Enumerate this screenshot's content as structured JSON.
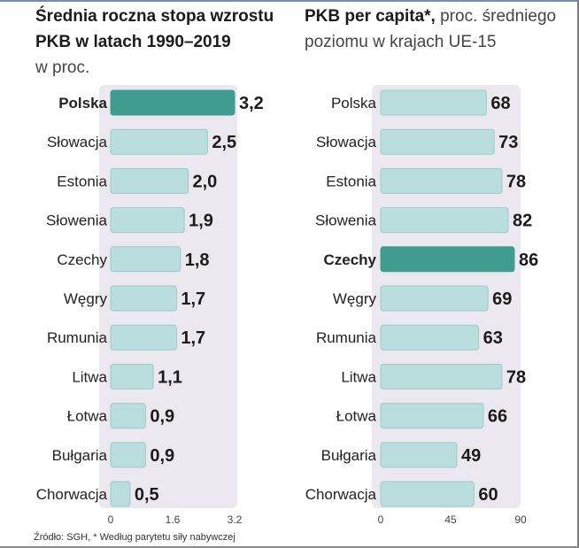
{
  "chart_data": [
    {
      "type": "bar",
      "orientation": "horizontal",
      "title": "Średnia roczna stopa wzrostu PKB  w latach 1990–2019",
      "subtitle": "w proc.",
      "categories": [
        "Polska",
        "Słowacja",
        "Estonia",
        "Słowenia",
        "Czechy",
        "Węgry",
        "Rumunia",
        "Litwa",
        "Łotwa",
        "Bułgaria",
        "Chorwacja"
      ],
      "values": [
        3.2,
        2.5,
        2.0,
        1.9,
        1.8,
        1.7,
        1.7,
        1.1,
        0.9,
        0.9,
        0.5
      ],
      "value_labels": [
        "3,2",
        "2,5",
        "2,0",
        "1,9",
        "1,8",
        "1,7",
        "1,7",
        "1,1",
        "0,9",
        "0,9",
        "0,5"
      ],
      "highlight": "Polska",
      "xlim": [
        0,
        3.2
      ],
      "ticks": [
        0,
        1.6,
        3.2
      ],
      "tick_labels": [
        "0",
        "1.6",
        "3.2"
      ]
    },
    {
      "type": "bar",
      "orientation": "horizontal",
      "title": "PKB per capita*,",
      "subtitle": "proc. średniego poziomu w krajach UE-15",
      "categories": [
        "Polska",
        "Słowacja",
        "Estonia",
        "Słowenia",
        "Czechy",
        "Węgry",
        "Rumunia",
        "Litwa",
        "Łotwa",
        "Bułgaria",
        "Chorwacja"
      ],
      "values": [
        68,
        73,
        78,
        82,
        86,
        69,
        63,
        78,
        66,
        49,
        60
      ],
      "value_labels": [
        "68",
        "73",
        "78",
        "82",
        "86",
        "69",
        "63",
        "78",
        "66",
        "49",
        "60"
      ],
      "highlight": "Czechy",
      "xlim": [
        0,
        90
      ],
      "ticks": [
        0,
        45,
        90
      ],
      "tick_labels": [
        "0",
        "45",
        "90"
      ]
    }
  ],
  "colors": {
    "bar": "#b9dedd",
    "bar_border": "#9fc9c7",
    "highlight": "#3f9c8e",
    "panel": "#ece8ef"
  },
  "source": "Źródło: SGH, * Według parytetu siły nabywczej"
}
